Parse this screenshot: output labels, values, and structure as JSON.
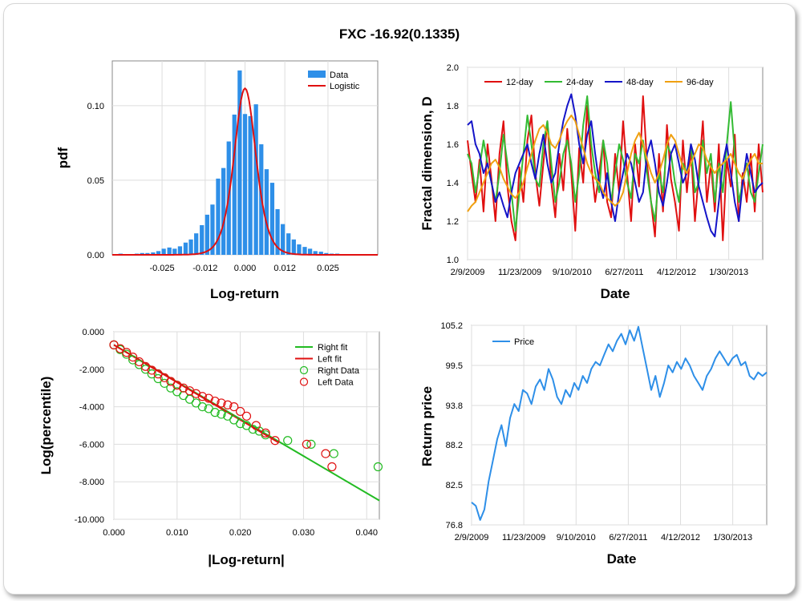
{
  "title": "FXC -16.92(0.1335)",
  "colors": {
    "data_bar": "#2e8fe8",
    "logistic": "#e01010",
    "right": "#22bb22",
    "left": "#e01010",
    "d12": "#e01010",
    "d24": "#33bb33",
    "d48": "#1414c8",
    "d96": "#f0a010",
    "price": "#2e8fe8",
    "grid": "#dddddd"
  },
  "chart_data": [
    {
      "type": "bar",
      "id": "hist",
      "xlabel": "Log-return",
      "ylabel": "pdf",
      "xlim": [
        -0.04,
        0.04
      ],
      "ylim": [
        0,
        0.13
      ],
      "xticks": [
        -0.025,
        -0.012,
        0.0,
        0.012,
        0.025
      ],
      "xtick_labels": [
        "-0.025",
        "-0.012",
        "0.000",
        "0.012",
        "0.025"
      ],
      "yticks": [
        0,
        0.05,
        0.1
      ],
      "ytick_labels": [
        "0.00",
        "0.05",
        "0.10"
      ],
      "legend": [
        "Data",
        "Logistic"
      ],
      "legend_position": "top-right",
      "bin_width": 0.00163,
      "bins_x": [
        -0.0375,
        -0.0359,
        -0.0342,
        -0.0326,
        -0.031,
        -0.0294,
        -0.0277,
        -0.0261,
        -0.0245,
        -0.0228,
        -0.0212,
        -0.0196,
        -0.0179,
        -0.0163,
        -0.0147,
        -0.013,
        -0.0114,
        -0.0098,
        -0.0081,
        -0.0065,
        -0.0049,
        -0.0032,
        -0.0016,
        0.0,
        0.0016,
        0.0033,
        0.0049,
        0.0065,
        0.0082,
        0.0098,
        0.0114,
        0.0131,
        0.0147,
        0.0163,
        0.018,
        0.0196,
        0.0212,
        0.0229,
        0.0245,
        0.0261,
        0.0278,
        0.0294,
        0.031,
        0.0326,
        0.0343,
        0.0359,
        0.0375
      ],
      "values": [
        0.0008,
        0.0004,
        0.0004,
        0.0008,
        0.0012,
        0.0012,
        0.0016,
        0.0025,
        0.0041,
        0.0049,
        0.0041,
        0.0057,
        0.0082,
        0.0103,
        0.0144,
        0.0199,
        0.0269,
        0.0337,
        0.0511,
        0.0582,
        0.076,
        0.094,
        0.1236,
        0.0944,
        0.093,
        0.1009,
        0.0741,
        0.0574,
        0.0483,
        0.0306,
        0.0206,
        0.0144,
        0.0103,
        0.007,
        0.0053,
        0.0041,
        0.0025,
        0.0021,
        0.0012,
        0.0008,
        0.0008,
        0.0004,
        0.0004,
        0.0004,
        0.0004,
        0.0004,
        0.0004
      ],
      "logistic": {
        "mu": 0.0,
        "s": 0.0022,
        "peak": 0.1116
      }
    },
    {
      "type": "line",
      "id": "fractal",
      "xlabel": "Date",
      "ylabel": "Fractal dimension, D",
      "ylim": [
        1.0,
        2.0
      ],
      "yticks": [
        1.0,
        1.2,
        1.4,
        1.6,
        1.8,
        2.0
      ],
      "ytick_labels": [
        "1.0",
        "1.2",
        "1.4",
        "1.6",
        "1.8",
        "2.0"
      ],
      "xtick_labels": [
        "2/9/2009",
        "11/23/2009",
        "9/10/2010",
        "6/27/2011",
        "4/12/2012",
        "1/30/2013"
      ],
      "legend_position": "top-left",
      "series": [
        {
          "name": "12-day",
          "color_key": "d12",
          "values": [
            1.62,
            1.45,
            1.3,
            1.52,
            1.25,
            1.6,
            1.42,
            1.2,
            1.55,
            1.72,
            1.38,
            1.2,
            1.1,
            1.48,
            1.3,
            1.62,
            1.75,
            1.45,
            1.28,
            1.5,
            1.72,
            1.4,
            1.22,
            1.55,
            1.36,
            1.68,
            1.45,
            1.15,
            1.58,
            1.4,
            1.8,
            1.5,
            1.3,
            1.45,
            1.62,
            1.3,
            1.22,
            1.55,
            1.35,
            1.72,
            1.45,
            1.2,
            1.6,
            1.38,
            1.85,
            1.5,
            1.3,
            1.12,
            1.55,
            1.25,
            1.7,
            1.42,
            1.3,
            1.15,
            1.62,
            1.35,
            1.58,
            1.2,
            1.45,
            1.72,
            1.3,
            1.5,
            1.25,
            1.6,
            1.1,
            1.52,
            1.38,
            1.65,
            1.2,
            1.45,
            1.3,
            1.55,
            1.25,
            1.6,
            1.35
          ]
        },
        {
          "name": "24-day",
          "color_key": "d24",
          "values": [
            1.55,
            1.5,
            1.35,
            1.48,
            1.62,
            1.5,
            1.4,
            1.3,
            1.45,
            1.65,
            1.5,
            1.35,
            1.15,
            1.35,
            1.55,
            1.75,
            1.6,
            1.42,
            1.38,
            1.6,
            1.72,
            1.5,
            1.3,
            1.4,
            1.55,
            1.62,
            1.5,
            1.3,
            1.45,
            1.7,
            1.85,
            1.6,
            1.45,
            1.35,
            1.62,
            1.5,
            1.3,
            1.45,
            1.6,
            1.52,
            1.4,
            1.32,
            1.55,
            1.5,
            1.62,
            1.45,
            1.3,
            1.2,
            1.45,
            1.35,
            1.6,
            1.55,
            1.4,
            1.3,
            1.5,
            1.45,
            1.6,
            1.35,
            1.4,
            1.62,
            1.45,
            1.55,
            1.3,
            1.5,
            1.35,
            1.6,
            1.82,
            1.55,
            1.3,
            1.4,
            1.5,
            1.35,
            1.3,
            1.45,
            1.6
          ]
        },
        {
          "name": "48-day",
          "color_key": "d48",
          "values": [
            1.7,
            1.72,
            1.6,
            1.55,
            1.45,
            1.5,
            1.4,
            1.3,
            1.35,
            1.28,
            1.22,
            1.35,
            1.45,
            1.5,
            1.55,
            1.6,
            1.5,
            1.42,
            1.55,
            1.65,
            1.5,
            1.4,
            1.45,
            1.6,
            1.72,
            1.8,
            1.86,
            1.75,
            1.6,
            1.5,
            1.65,
            1.72,
            1.55,
            1.4,
            1.32,
            1.45,
            1.3,
            1.2,
            1.35,
            1.45,
            1.55,
            1.5,
            1.4,
            1.3,
            1.35,
            1.55,
            1.62,
            1.5,
            1.35,
            1.28,
            1.4,
            1.55,
            1.6,
            1.5,
            1.4,
            1.45,
            1.6,
            1.52,
            1.38,
            1.3,
            1.22,
            1.15,
            1.12,
            1.3,
            1.5,
            1.6,
            1.45,
            1.3,
            1.2,
            1.4,
            1.55,
            1.45,
            1.35,
            1.38,
            1.4
          ]
        },
        {
          "name": "96-day",
          "color_key": "d96",
          "values": [
            1.25,
            1.28,
            1.3,
            1.35,
            1.4,
            1.45,
            1.5,
            1.52,
            1.48,
            1.42,
            1.38,
            1.34,
            1.32,
            1.35,
            1.4,
            1.48,
            1.55,
            1.62,
            1.68,
            1.7,
            1.66,
            1.6,
            1.58,
            1.62,
            1.68,
            1.72,
            1.75,
            1.72,
            1.65,
            1.58,
            1.5,
            1.45,
            1.42,
            1.4,
            1.35,
            1.32,
            1.3,
            1.28,
            1.3,
            1.35,
            1.45,
            1.55,
            1.62,
            1.66,
            1.6,
            1.52,
            1.45,
            1.4,
            1.45,
            1.52,
            1.6,
            1.65,
            1.62,
            1.55,
            1.48,
            1.45,
            1.5,
            1.55,
            1.6,
            1.58,
            1.52,
            1.48,
            1.45,
            1.48,
            1.5,
            1.52,
            1.55,
            1.5,
            1.45,
            1.42,
            1.48,
            1.52,
            1.55,
            1.5,
            1.5
          ]
        }
      ]
    },
    {
      "type": "scatter",
      "id": "tail",
      "xlabel": "|Log-return|",
      "ylabel": "Log(percentile)",
      "xlim": [
        0,
        0.042
      ],
      "ylim": [
        -10,
        0.3
      ],
      "xticks": [
        0,
        0.01,
        0.02,
        0.03,
        0.04
      ],
      "xtick_labels": [
        "0.000",
        "0.010",
        "0.020",
        "0.030",
        "0.040"
      ],
      "yticks": [
        0,
        -2,
        -4,
        -6,
        -8,
        -10
      ],
      "ytick_labels": [
        "0.000",
        "-2.000",
        "-4.000",
        "-6.000",
        "-8.000",
        "-10.000"
      ],
      "legend_position": "top-right",
      "right_fit": {
        "name": "Right fit",
        "x": [
          0.0,
          0.042
        ],
        "y": [
          -0.7,
          -9.0
        ]
      },
      "left_fit": {
        "name": "Left fit",
        "x": [
          0.0,
          0.026
        ],
        "y": [
          -0.7,
          -5.9
        ]
      },
      "right_data": {
        "name": "Right Data",
        "x": [
          0.0,
          0.001,
          0.002,
          0.003,
          0.004,
          0.005,
          0.006,
          0.007,
          0.008,
          0.009,
          0.01,
          0.011,
          0.012,
          0.013,
          0.014,
          0.015,
          0.016,
          0.017,
          0.018,
          0.019,
          0.02,
          0.021,
          0.022,
          0.023,
          0.024,
          0.0275,
          0.0312,
          0.0348,
          0.0418
        ],
        "y": [
          -0.7,
          -0.95,
          -1.2,
          -1.5,
          -1.75,
          -2.0,
          -2.25,
          -2.5,
          -2.75,
          -3.0,
          -3.2,
          -3.4,
          -3.6,
          -3.8,
          -4.0,
          -4.1,
          -4.3,
          -4.4,
          -4.5,
          -4.7,
          -4.9,
          -5.0,
          -5.2,
          -5.3,
          -5.5,
          -5.8,
          -6.0,
          -6.5,
          -7.2
        ]
      },
      "left_data": {
        "name": "Left Data",
        "x": [
          0.0,
          0.001,
          0.002,
          0.003,
          0.004,
          0.005,
          0.006,
          0.007,
          0.008,
          0.009,
          0.01,
          0.011,
          0.012,
          0.013,
          0.014,
          0.015,
          0.016,
          0.017,
          0.018,
          0.019,
          0.02,
          0.021,
          0.0225,
          0.024,
          0.0255,
          0.0305,
          0.0335,
          0.0345
        ],
        "y": [
          -0.7,
          -0.9,
          -1.1,
          -1.35,
          -1.6,
          -1.85,
          -2.05,
          -2.25,
          -2.45,
          -2.65,
          -2.85,
          -3.0,
          -3.15,
          -3.3,
          -3.45,
          -3.55,
          -3.7,
          -3.8,
          -3.9,
          -4.0,
          -4.25,
          -4.5,
          -5.0,
          -5.4,
          -5.8,
          -6.0,
          -6.5,
          -7.2
        ]
      }
    },
    {
      "type": "line",
      "id": "price",
      "xlabel": "Date",
      "ylabel": "Return price",
      "ylim": [
        76.8,
        105.2
      ],
      "yticks": [
        76.8,
        82.5,
        88.2,
        93.8,
        99.5,
        105.2
      ],
      "ytick_labels": [
        "76.8",
        "82.5",
        "88.2",
        "93.8",
        "99.5",
        "105.2"
      ],
      "xtick_labels": [
        "2/9/2009",
        "11/23/2009",
        "9/10/2010",
        "6/27/2011",
        "4/12/2012",
        "1/30/2013"
      ],
      "legend_position": "top-left",
      "series": [
        {
          "name": "Price",
          "color_key": "price",
          "values": [
            80.0,
            79.5,
            77.5,
            79.0,
            83.0,
            86.0,
            89.0,
            91.0,
            88.0,
            92.0,
            94.0,
            93.0,
            96.0,
            95.5,
            94.0,
            96.5,
            97.5,
            96.0,
            99.0,
            97.5,
            95.0,
            94.0,
            96.0,
            95.0,
            97.0,
            96.0,
            98.0,
            97.0,
            99.0,
            100.0,
            99.5,
            101.0,
            102.5,
            101.5,
            103.0,
            104.0,
            102.5,
            104.5,
            103.0,
            105.0,
            102.0,
            99.0,
            96.0,
            98.0,
            95.0,
            97.0,
            99.5,
            98.5,
            100.0,
            99.0,
            100.5,
            99.5,
            98.0,
            97.0,
            96.0,
            98.0,
            99.0,
            100.5,
            101.5,
            100.5,
            99.5,
            100.5,
            101.0,
            99.5,
            100.0,
            98.0,
            97.5,
            98.5,
            98.0,
            98.5
          ]
        }
      ]
    }
  ]
}
